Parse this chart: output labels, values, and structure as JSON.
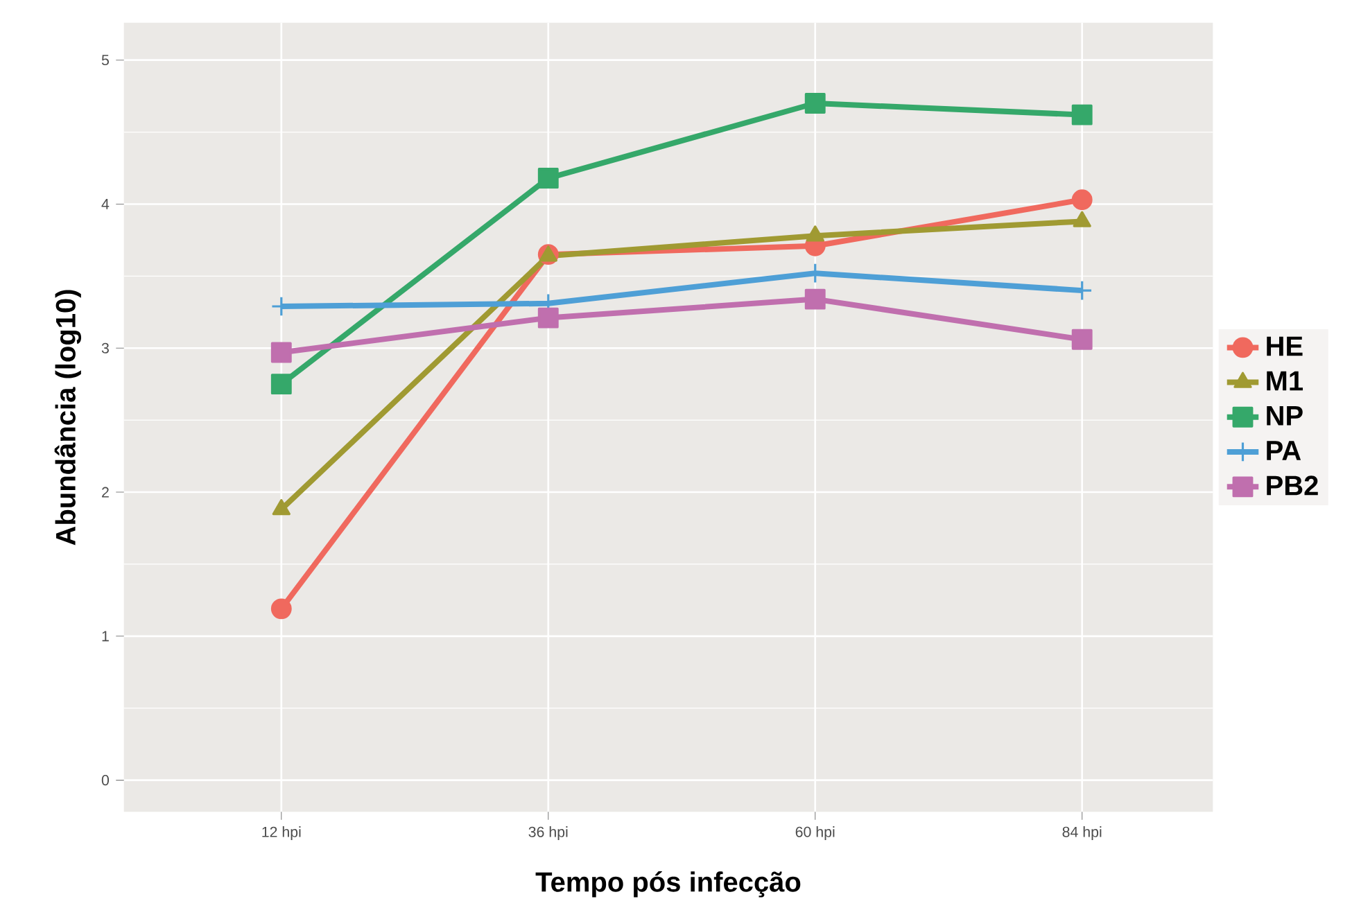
{
  "chart_data": {
    "type": "line",
    "xlabel": "Tempo pós infecção",
    "ylabel": "Abundância (log10)",
    "categories": [
      "12 hpi",
      "36 hpi",
      "60 hpi",
      "84 hpi"
    ],
    "series": [
      {
        "name": "HE",
        "color": "#f0695e",
        "marker": "circle",
        "values": [
          1.19,
          3.65,
          3.71,
          4.03
        ]
      },
      {
        "name": "M1",
        "color": "#a09a32",
        "marker": "triangle",
        "values": [
          1.88,
          3.64,
          3.78,
          3.88
        ]
      },
      {
        "name": "NP",
        "color": "#35a86a",
        "marker": "square",
        "values": [
          2.75,
          4.18,
          4.7,
          4.62
        ]
      },
      {
        "name": "PA",
        "color": "#4e9fd6",
        "marker": "cross",
        "values": [
          3.29,
          3.31,
          3.52,
          3.4
        ]
      },
      {
        "name": "PB2",
        "color": "#c06fae",
        "marker": "square",
        "values": [
          2.97,
          3.21,
          3.34,
          3.06
        ]
      }
    ],
    "ylim": [
      -0.22,
      5.26
    ],
    "yticks": [
      0,
      1,
      2,
      3,
      4,
      5
    ],
    "grid": true,
    "legend": "right",
    "line_style": "solid"
  }
}
